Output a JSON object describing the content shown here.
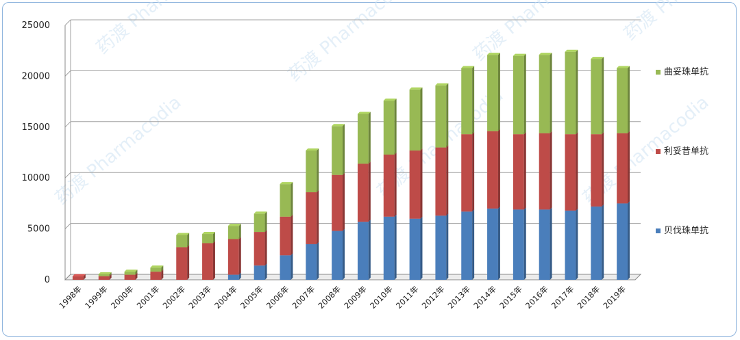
{
  "chart_data": {
    "type": "bar",
    "stacked": true,
    "categories": [
      "1998年",
      "1999年",
      "2000年",
      "2001年",
      "2002年",
      "2003年",
      "2004年",
      "2005年",
      "2006年",
      "2007年",
      "2008年",
      "2009年",
      "2010年",
      "2011年",
      "2012年",
      "2013年",
      "2014年",
      "2015年",
      "2016年",
      "2017年",
      "2018年",
      "2019年"
    ],
    "series": [
      {
        "name": "贝伐珠单抗",
        "color": "#4a7ebb",
        "values": [
          0,
          0,
          0,
          0,
          0,
          0,
          500,
          1400,
          2400,
          3500,
          4800,
          5700,
          6200,
          6000,
          6300,
          6700,
          7000,
          6900,
          6900,
          6800,
          7200,
          7500
        ]
      },
      {
        "name": "利妥昔单抗",
        "color": "#be4b48",
        "values": [
          350,
          350,
          500,
          800,
          3200,
          3600,
          3500,
          3300,
          3800,
          5100,
          5500,
          5700,
          6100,
          6700,
          6700,
          7600,
          7600,
          7400,
          7500,
          7500,
          7100,
          6900
        ]
      },
      {
        "name": "曲妥珠单抗",
        "color": "#98b954",
        "values": [
          0,
          200,
          300,
          400,
          1200,
          900,
          1300,
          1800,
          3200,
          4100,
          4800,
          4900,
          5300,
          6000,
          6100,
          6500,
          7500,
          7700,
          7700,
          8100,
          7400,
          6400
        ]
      }
    ],
    "ylim": [
      0,
      25000
    ],
    "yticks": [
      0,
      5000,
      10000,
      15000,
      20000,
      25000
    ],
    "grid": true,
    "legend_position": "right",
    "watermark": "药渡 Pharmacodia"
  }
}
